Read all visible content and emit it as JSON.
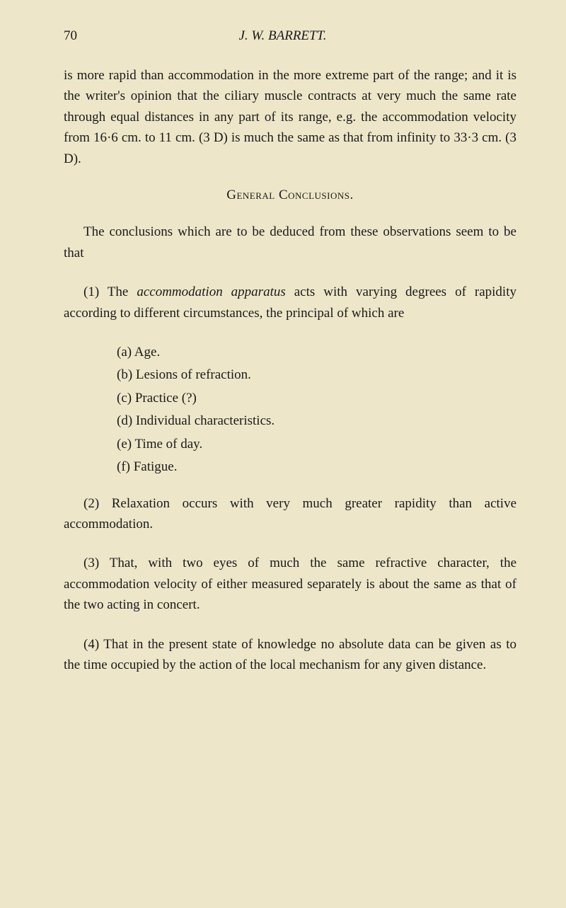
{
  "header": {
    "pageNumber": "70",
    "author": "J. W. BARRETT."
  },
  "paragraphs": {
    "intro": "is more rapid than accommodation in the more extreme part of the range; and it is the writer's opinion that the ciliary muscle contracts at very much the same rate through equal distances in any part of its range, e.g. the accommodation velocity from 16·6 cm. to 11 cm. (3 D) is much the same as that from infinity to 33·3 cm. (3 D).",
    "sectionTitle": "General Conclusions.",
    "conclusionIntro": "The conclusions which are to be deduced from these observations seem to be that",
    "point1_prefix": "(1) The ",
    "point1_italic": "accommodation apparatus",
    "point1_suffix": " acts with varying degrees of rapidity according to different circumstances, the principal of which are",
    "items": {
      "a": "(a)  Age.",
      "b": "(b)  Lesions of refraction.",
      "c": "(c)  Practice (?)",
      "d": "(d)  Individual characteristics.",
      "e": "(e)  Time of day.",
      "f": "(f)  Fatigue."
    },
    "point2": "(2) Relaxation occurs with very much greater rapidity than active accommodation.",
    "point3": "(3) That, with two eyes of much the same refractive character, the accommodation velocity of either measured separately is about the same as that of the two acting in concert.",
    "point4": "(4) That in the present state of knowledge no absolute data can be given as to the time occupied by the action of the local mechanism for any given distance."
  },
  "styling": {
    "backgroundColor": "#ede6c9",
    "textColor": "#1a1a1a",
    "fontSize": 19,
    "lineHeight": 1.55,
    "pageWidth": 800,
    "pageHeight": 1283
  }
}
